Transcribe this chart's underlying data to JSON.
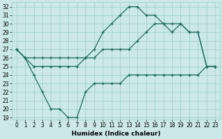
{
  "xlabel": "Humidex (Indice chaleur)",
  "background_color": "#cce8e8",
  "grid_color": "#99cccc",
  "line_color": "#1a6b60",
  "hours": [
    0,
    1,
    2,
    3,
    4,
    5,
    6,
    7,
    8,
    9,
    10,
    11,
    12,
    13,
    14,
    15,
    16,
    17,
    18,
    19,
    20,
    21,
    22,
    23
  ],
  "line_min": [
    27,
    26,
    24,
    22,
    20,
    20,
    19,
    19,
    22,
    23,
    23,
    23,
    23,
    24,
    24,
    24,
    24,
    24,
    24,
    24,
    24,
    24,
    25,
    25
  ],
  "line_max": [
    27,
    26,
    26,
    26,
    26,
    26,
    26,
    26,
    26,
    27,
    29,
    30,
    31,
    32,
    32,
    31,
    31,
    30,
    30,
    30,
    29,
    29,
    25,
    25
  ],
  "line_mid": [
    27,
    26,
    25,
    25,
    25,
    25,
    25,
    25,
    26,
    26,
    27,
    27,
    27,
    27,
    28,
    29,
    30,
    30,
    29,
    30,
    29,
    29,
    25,
    25
  ],
  "ylim_min": 18.8,
  "ylim_max": 32.5,
  "xlim_min": -0.5,
  "xlim_max": 23.5,
  "yticks": [
    19,
    20,
    21,
    22,
    23,
    24,
    25,
    26,
    27,
    28,
    29,
    30,
    31,
    32
  ],
  "xticks": [
    0,
    1,
    2,
    3,
    4,
    5,
    6,
    7,
    8,
    9,
    10,
    11,
    12,
    13,
    14,
    15,
    16,
    17,
    18,
    19,
    20,
    21,
    22,
    23
  ],
  "tick_fontsize": 5.5,
  "xlabel_fontsize": 6.5,
  "linewidth": 0.9,
  "markersize": 3.5
}
